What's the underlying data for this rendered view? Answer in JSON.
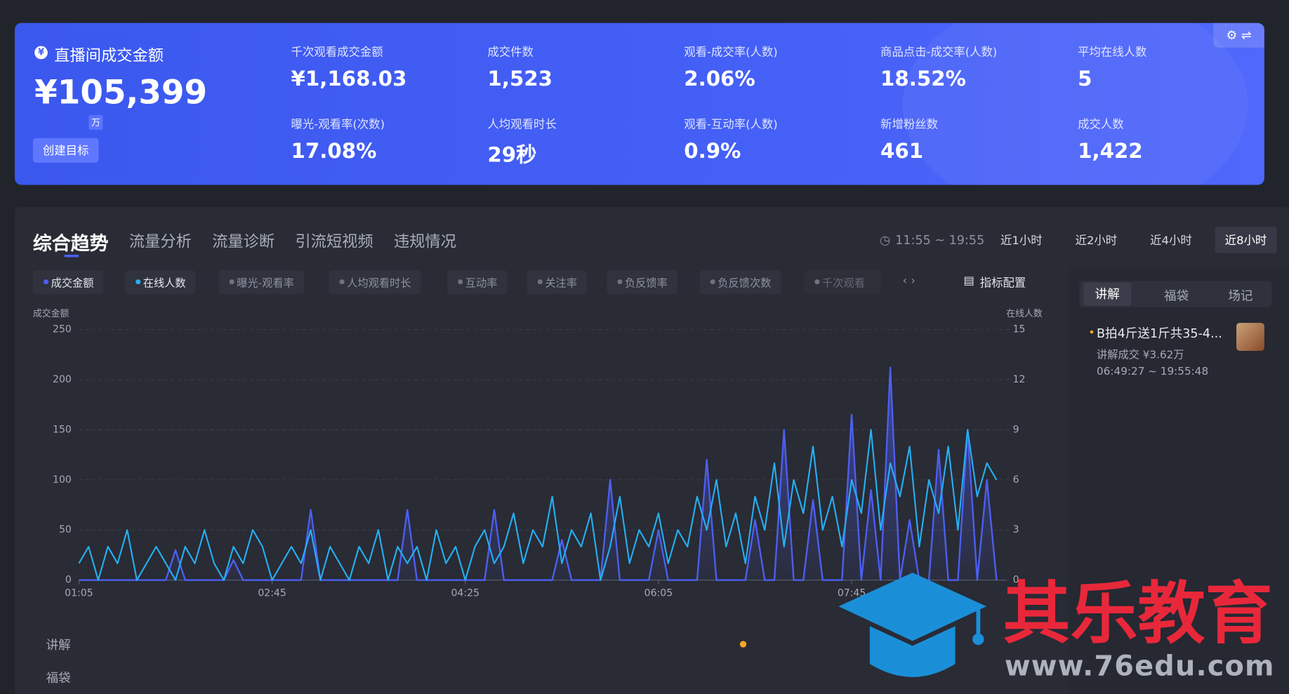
{
  "summary": {
    "title": "直播间成交金额",
    "value": "¥105,399",
    "unit_badge": "万",
    "button": "创建目标",
    "metrics": [
      {
        "label": "千次观看成交金额",
        "value": "¥1,168.03"
      },
      {
        "label": "成交件数",
        "value": "1,523"
      },
      {
        "label": "观看-成交率(人数)",
        "value": "2.06%"
      },
      {
        "label": "商品点击-成交率(人数)",
        "value": "18.52%"
      },
      {
        "label": "平均在线人数",
        "value": "5"
      },
      {
        "label": "曝光-观看率(次数)",
        "value": "17.08%"
      },
      {
        "label": "人均观看时长",
        "value": "29秒"
      },
      {
        "label": "观看-互动率(人数)",
        "value": "0.9%"
      },
      {
        "label": "新增粉丝数",
        "value": "461"
      },
      {
        "label": "成交人数",
        "value": "1,422"
      }
    ]
  },
  "tabs": [
    "综合趋势",
    "流量分析",
    "流量诊断",
    "引流短视频",
    "违规情况"
  ],
  "time_range": "11:55 ~ 19:55",
  "range_buttons": [
    "近1小时",
    "近2小时",
    "近4小时",
    "近8小时"
  ],
  "other_metrics": [
    "曝光-观看率",
    "人均观看时长",
    "互动率",
    "关注率",
    "负反馈率",
    "负反馈次数",
    "千次观看"
  ],
  "metric_config": "指标配置",
  "row_labels": [
    "讲解",
    "福袋"
  ],
  "side_panel": {
    "tabs": [
      "讲解",
      "福袋",
      "场记"
    ],
    "item": {
      "title": "B拍4斤送1斤共35-4...",
      "sales": "讲解成交 ¥3.62万",
      "time": "06:49:27 ~ 19:55:48"
    }
  },
  "watermark": {
    "title": "其乐教育",
    "url": "www.76edu.com"
  },
  "chart_data": {
    "type": "line",
    "y_label": "成交金额",
    "y2_label": "在线人数",
    "x": [
      65,
      70,
      75,
      80,
      85,
      90,
      95,
      100,
      105,
      110,
      115,
      120,
      125,
      130,
      135,
      140,
      145,
      150,
      155,
      160,
      165,
      170,
      175,
      180,
      185,
      190,
      195,
      200,
      205,
      210,
      215,
      220,
      225,
      230,
      235,
      240,
      245,
      250,
      255,
      260,
      265,
      270,
      275,
      280,
      285,
      290,
      295,
      300,
      305,
      310,
      315,
      320,
      325,
      330,
      335,
      340,
      345,
      350,
      355,
      360,
      365,
      370,
      375,
      380,
      385,
      390,
      395,
      400,
      405,
      410,
      415,
      420,
      425,
      430,
      435,
      440,
      445,
      450,
      455,
      460,
      465,
      470,
      475,
      480,
      485,
      490,
      495,
      500,
      505,
      510,
      515,
      520,
      525,
      530,
      535,
      540
    ],
    "xlim": [
      65,
      545
    ],
    "xticks": [
      {
        "value": 65,
        "label": "01:05"
      },
      {
        "value": 165,
        "label": "02:45"
      },
      {
        "value": 265,
        "label": "04:25"
      },
      {
        "value": 365,
        "label": "06:05"
      },
      {
        "value": 465,
        "label": "07:45"
      }
    ],
    "ylim": [
      0,
      250
    ],
    "yticks": [
      0,
      50,
      100,
      150,
      200,
      250
    ],
    "y2lim": [
      0,
      15
    ],
    "y2ticks": [
      0,
      3,
      6,
      9,
      12,
      15
    ],
    "grid": true,
    "series": [
      {
        "name": "成交金额",
        "color": "#4d5ff2",
        "values": [
          0,
          0,
          0,
          0,
          0,
          0,
          0,
          0,
          0,
          0,
          30,
          0,
          0,
          0,
          0,
          0,
          20,
          0,
          0,
          0,
          0,
          0,
          0,
          0,
          70,
          0,
          0,
          0,
          0,
          0,
          0,
          0,
          0,
          0,
          70,
          0,
          0,
          0,
          0,
          0,
          0,
          0,
          0,
          70,
          0,
          0,
          0,
          0,
          0,
          0,
          40,
          0,
          0,
          0,
          0,
          100,
          0,
          0,
          0,
          0,
          50,
          0,
          0,
          0,
          0,
          120,
          0,
          0,
          0,
          0,
          60,
          0,
          0,
          150,
          0,
          0,
          80,
          0,
          0,
          0,
          165,
          0,
          90,
          0,
          212,
          0,
          60,
          0,
          0,
          130,
          0,
          0,
          150,
          0,
          100,
          0
        ]
      },
      {
        "name": "在线人数",
        "color": "#25b0f2",
        "axis": "y2",
        "values": [
          1,
          2,
          0,
          2,
          1,
          3,
          0,
          1,
          2,
          1,
          0,
          2,
          1,
          3,
          1,
          0,
          2,
          1,
          3,
          2,
          0,
          1,
          2,
          1,
          3,
          0,
          2,
          1,
          0,
          2,
          1,
          3,
          0,
          2,
          1,
          2,
          0,
          3,
          1,
          2,
          0,
          2,
          3,
          1,
          2,
          4,
          1,
          3,
          2,
          5,
          1,
          3,
          2,
          4,
          0,
          2,
          5,
          1,
          3,
          2,
          4,
          1,
          3,
          2,
          5,
          3,
          6,
          2,
          4,
          1,
          5,
          3,
          7,
          2,
          6,
          4,
          8,
          3,
          5,
          2,
          6,
          4,
          9,
          3,
          7,
          5,
          8,
          2,
          6,
          4,
          8,
          3,
          9,
          5,
          7,
          6
        ]
      }
    ]
  }
}
